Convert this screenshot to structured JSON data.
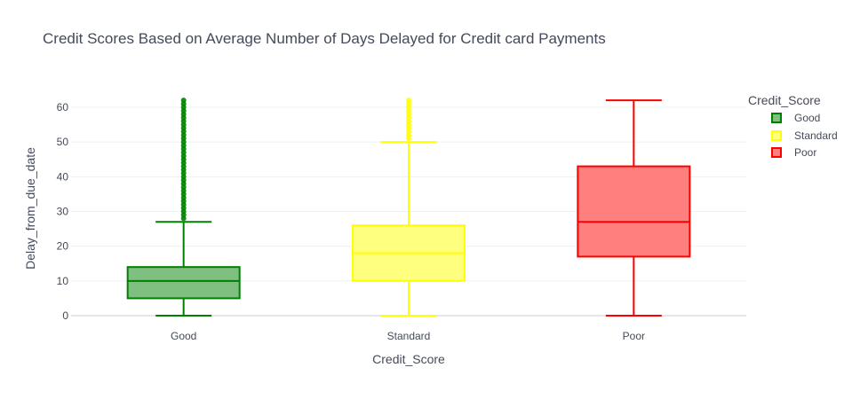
{
  "chart_data": {
    "type": "box",
    "title": "Credit Scores Based on Average Number of Days Delayed for Credit card Payments",
    "xlabel": "Credit_Score",
    "ylabel": "Delay_from_due_date",
    "ylim": [
      -1,
      66
    ],
    "yticks": [
      0,
      10,
      20,
      30,
      40,
      50,
      60
    ],
    "grid": true,
    "legend": {
      "title": "Credit_Score",
      "placement": "top-right"
    },
    "categories": [
      "Good",
      "Standard",
      "Poor"
    ],
    "series": [
      {
        "name": "Good",
        "min": 0,
        "q1": 5,
        "median": 10,
        "q3": 14,
        "max": 27,
        "outliers_from": 28,
        "outliers_to": 62,
        "color": "#008000",
        "fill": "#7fbf7f"
      },
      {
        "name": "Standard",
        "min": 0,
        "q1": 10,
        "median": 18,
        "q3": 26,
        "max": 50,
        "outliers_from": 51,
        "outliers_to": 62,
        "color": "#ffff00",
        "fill": "#ffff7f"
      },
      {
        "name": "Poor",
        "min": 0,
        "q1": 17,
        "median": 27,
        "q3": 43,
        "max": 62,
        "outliers_from": null,
        "outliers_to": null,
        "color": "#ff0000",
        "fill": "#ff7f7f"
      }
    ]
  }
}
